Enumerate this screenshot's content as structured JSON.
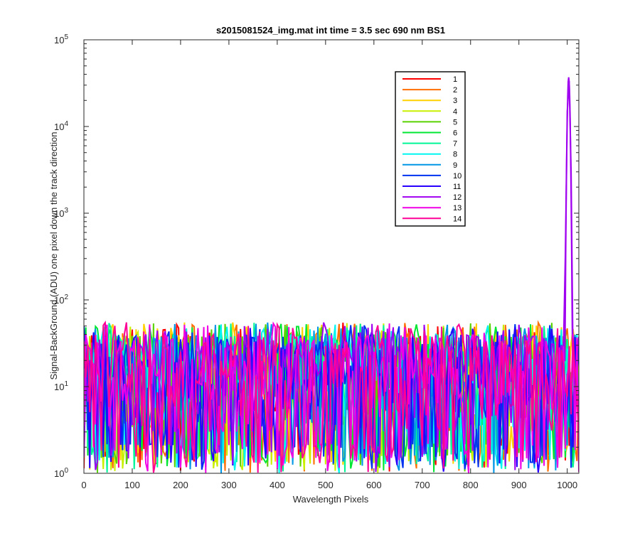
{
  "chart_data": {
    "type": "line",
    "title": "s2015081524_img.mat int time = 3.5 sec  690 nm BS1",
    "xlabel": "Wavelength Pixels",
    "ylabel": "Signal-BackGround (ADU) one pixel down the track direction",
    "xlim": [
      0,
      1024
    ],
    "ylim": [
      1,
      100000
    ],
    "yscale": "log",
    "grid": false,
    "legend_placement": "upper-right (inside axes)",
    "x_ticks": [
      "0",
      "100",
      "200",
      "300",
      "400",
      "500",
      "600",
      "700",
      "800",
      "900",
      "1000"
    ],
    "y_ticks": [
      {
        "base": "10",
        "exp": "0"
      },
      {
        "base": "10",
        "exp": "1"
      },
      {
        "base": "10",
        "exp": "2"
      },
      {
        "base": "10",
        "exp": "3"
      },
      {
        "base": "10",
        "exp": "4"
      },
      {
        "base": "10",
        "exp": "5"
      }
    ],
    "noise_band": {
      "x_range": [
        0,
        1024
      ],
      "typical_range": [
        1,
        40
      ],
      "max_excursion": 65
    },
    "peak": {
      "x": 1003,
      "y": 37000,
      "series": "12"
    },
    "series": [
      {
        "name": "1",
        "color": "#ff0000"
      },
      {
        "name": "2",
        "color": "#ff6e00"
      },
      {
        "name": "3",
        "color": "#ffd200"
      },
      {
        "name": "4",
        "color": "#c8f000"
      },
      {
        "name": "5",
        "color": "#5ad200"
      },
      {
        "name": "6",
        "color": "#00e632"
      },
      {
        "name": "7",
        "color": "#00f596"
      },
      {
        "name": "8",
        "color": "#00f5f0"
      },
      {
        "name": "9",
        "color": "#0096e6"
      },
      {
        "name": "10",
        "color": "#0032f0"
      },
      {
        "name": "11",
        "color": "#2800ff"
      },
      {
        "name": "12",
        "color": "#a000f0"
      },
      {
        "name": "13",
        "color": "#f000e6"
      },
      {
        "name": "14",
        "color": "#ff0096"
      }
    ]
  }
}
